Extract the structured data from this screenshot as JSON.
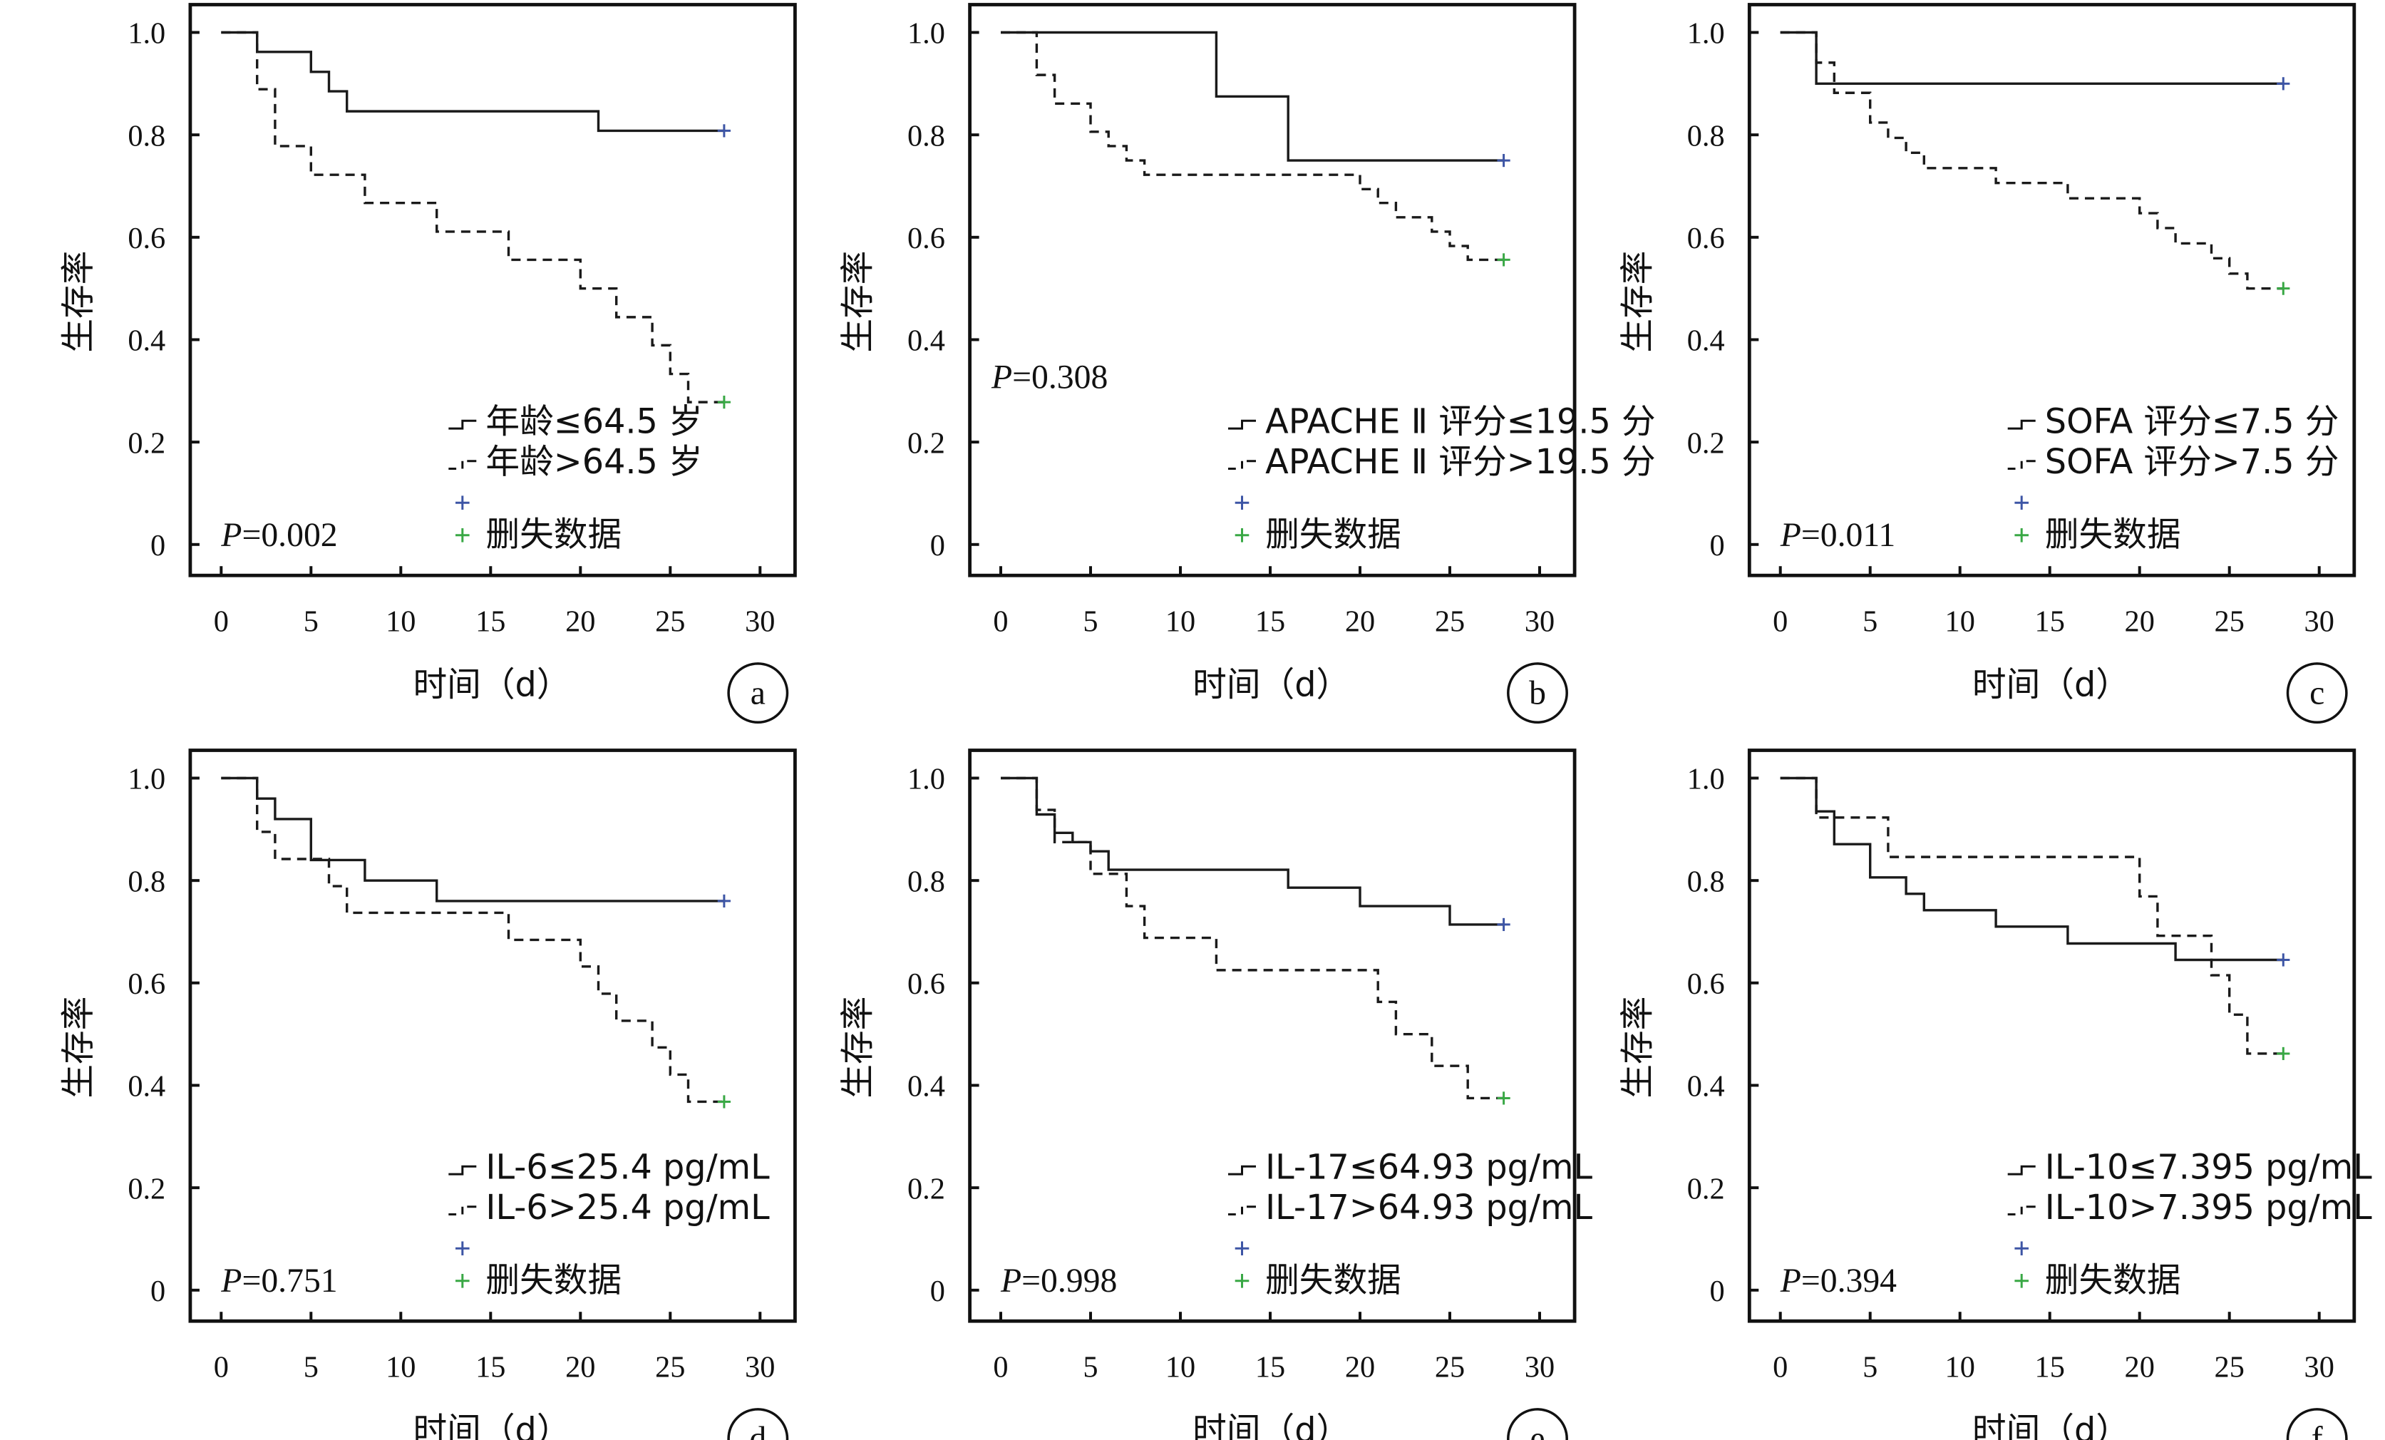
{
  "chart_data": [
    {
      "type": "line",
      "panel_label": "a",
      "xlabel": "时间（d）",
      "ylabel": "生存率",
      "xlim": [
        0,
        30
      ],
      "ylim": [
        0,
        1.0
      ],
      "xticks": [
        "0",
        "5",
        "10",
        "15",
        "20",
        "25",
        "30"
      ],
      "yticks": [
        "0",
        "0.2",
        "0.4",
        "0.6",
        "0.8",
        "1.0"
      ],
      "p_prefix": "P",
      "p_value": "=0.002",
      "legend_placement": "bottom-right",
      "legend": [
        "年龄≤64.5 岁",
        "年龄>64.5 岁",
        "",
        "删失数据"
      ],
      "series": [
        {
          "name": "年龄≤64.5 岁",
          "style": "solid",
          "color": "#1a1a1a",
          "censor_color": "#3d55a5",
          "x": [
            0,
            2,
            5,
            6,
            7,
            21,
            28
          ],
          "y": [
            1.0,
            0.962,
            0.923,
            0.885,
            0.846,
            0.808,
            0.808
          ],
          "censored": [
            [
              28,
              0.808
            ]
          ]
        },
        {
          "name": "年龄>64.5 岁",
          "style": "dashed",
          "color": "#1a1a1a",
          "censor_color": "#39a845",
          "x": [
            0,
            2,
            3,
            5,
            8,
            12,
            16,
            20,
            22,
            24,
            25,
            26,
            28
          ],
          "y": [
            1.0,
            0.889,
            0.778,
            0.722,
            0.667,
            0.611,
            0.556,
            0.5,
            0.444,
            0.389,
            0.333,
            0.278,
            0.278
          ],
          "censored": [
            [
              28,
              0.278
            ]
          ]
        }
      ]
    },
    {
      "type": "line",
      "panel_label": "b",
      "xlabel": "时间（d）",
      "ylabel": "生存率",
      "xlim": [
        0,
        30
      ],
      "ylim": [
        0,
        1.0
      ],
      "xticks": [
        "0",
        "5",
        "10",
        "15",
        "20",
        "25",
        "30"
      ],
      "yticks": [
        "0",
        "0.2",
        "0.4",
        "0.6",
        "0.8",
        "1.0"
      ],
      "p_prefix": "P",
      "p_value": "=0.308",
      "legend_placement": "bottom-right",
      "legend": [
        "APACHE Ⅱ 评分≤19.5 分",
        "APACHE Ⅱ 评分>19.5 分",
        "",
        "删失数据"
      ],
      "series": [
        {
          "name": "APACHE Ⅱ 评分≤19.5 分",
          "style": "solid",
          "color": "#1a1a1a",
          "censor_color": "#3d55a5",
          "x": [
            0,
            12,
            16,
            28
          ],
          "y": [
            1.0,
            0.875,
            0.75,
            0.75
          ],
          "censored": [
            [
              28,
              0.75
            ]
          ]
        },
        {
          "name": "APACHE Ⅱ 评分>19.5 分",
          "style": "dashed",
          "color": "#1a1a1a",
          "censor_color": "#39a845",
          "x": [
            0,
            2,
            3,
            5,
            6,
            7,
            8,
            20,
            21,
            22,
            24,
            25,
            26,
            28
          ],
          "y": [
            1.0,
            0.917,
            0.861,
            0.806,
            0.778,
            0.75,
            0.722,
            0.694,
            0.667,
            0.639,
            0.611,
            0.583,
            0.556,
            0.556
          ],
          "censored": [
            [
              28,
              0.556
            ]
          ]
        }
      ]
    },
    {
      "type": "line",
      "panel_label": "c",
      "xlabel": "时间（d）",
      "ylabel": "生存率",
      "xlim": [
        0,
        30
      ],
      "ylim": [
        0,
        1.0
      ],
      "xticks": [
        "0",
        "5",
        "10",
        "15",
        "20",
        "25",
        "30"
      ],
      "yticks": [
        "0",
        "0.2",
        "0.4",
        "0.6",
        "0.8",
        "1.0"
      ],
      "p_prefix": "P",
      "p_value": "=0.011",
      "legend_placement": "bottom-right",
      "legend": [
        "SOFA 评分≤7.5 分",
        "SOFA 评分>7.5 分",
        "",
        "删失数据"
      ],
      "series": [
        {
          "name": "SOFA 评分≤7.5 分",
          "style": "solid",
          "color": "#1a1a1a",
          "censor_color": "#3d55a5",
          "x": [
            0,
            2,
            28
          ],
          "y": [
            1.0,
            0.9,
            0.9
          ],
          "censored": [
            [
              28,
              0.9
            ]
          ]
        },
        {
          "name": "SOFA 评分>7.5 分",
          "style": "dashed",
          "color": "#1a1a1a",
          "censor_color": "#39a845",
          "x": [
            0,
            2,
            3,
            5,
            6,
            7,
            8,
            12,
            16,
            20,
            21,
            22,
            24,
            25,
            26,
            28
          ],
          "y": [
            1.0,
            0.941,
            0.882,
            0.824,
            0.794,
            0.765,
            0.735,
            0.706,
            0.676,
            0.647,
            0.618,
            0.588,
            0.559,
            0.529,
            0.5,
            0.5
          ],
          "censored": [
            [
              28,
              0.5
            ]
          ]
        }
      ]
    },
    {
      "type": "line",
      "panel_label": "d",
      "xlabel": "时间（d）",
      "ylabel": "生存率",
      "xlim": [
        0,
        30
      ],
      "ylim": [
        0,
        1.0
      ],
      "xticks": [
        "0",
        "5",
        "10",
        "15",
        "20",
        "25",
        "30"
      ],
      "yticks": [
        "0",
        "0.2",
        "0.4",
        "0.6",
        "0.8",
        "1.0"
      ],
      "p_prefix": "P",
      "p_value": "=0.751",
      "legend_placement": "bottom-right",
      "legend": [
        "IL-6≤25.4 pg/mL",
        "IL-6>25.4 pg/mL",
        "",
        "删失数据"
      ],
      "series": [
        {
          "name": "IL-6≤25.4 pg/mL",
          "style": "solid",
          "color": "#1a1a1a",
          "censor_color": "#3d55a5",
          "x": [
            0,
            2,
            3,
            5,
            8,
            12,
            28
          ],
          "y": [
            1.0,
            0.96,
            0.92,
            0.84,
            0.8,
            0.76,
            0.76
          ],
          "censored": [
            [
              28,
              0.76
            ]
          ]
        },
        {
          "name": "IL-6>25.4 pg/mL",
          "style": "dashed",
          "color": "#1a1a1a",
          "censor_color": "#39a845",
          "x": [
            0,
            2,
            3,
            6,
            7,
            16,
            20,
            21,
            22,
            24,
            25,
            26,
            28
          ],
          "y": [
            1.0,
            0.895,
            0.842,
            0.789,
            0.737,
            0.684,
            0.632,
            0.579,
            0.526,
            0.474,
            0.421,
            0.368,
            0.368
          ],
          "censored": [
            [
              28,
              0.368
            ]
          ]
        }
      ]
    },
    {
      "type": "line",
      "panel_label": "e",
      "xlabel": "时间（d）",
      "ylabel": "生存率",
      "xlim": [
        0,
        30
      ],
      "ylim": [
        0,
        1.0
      ],
      "xticks": [
        "0",
        "5",
        "10",
        "15",
        "20",
        "25",
        "30"
      ],
      "yticks": [
        "0",
        "0.2",
        "0.4",
        "0.6",
        "0.8",
        "1.0"
      ],
      "p_prefix": "P",
      "p_value": "=0.998",
      "legend_placement": "bottom-right",
      "legend": [
        "IL-17≤64.93 pg/mL",
        "IL-17>64.93 pg/mL",
        "",
        "删失数据"
      ],
      "series": [
        {
          "name": "IL-17≤64.93 pg/mL",
          "style": "solid",
          "color": "#1a1a1a",
          "censor_color": "#3d55a5",
          "x": [
            0,
            2,
            3,
            4,
            5,
            6,
            16,
            20,
            25,
            28
          ],
          "y": [
            1.0,
            0.929,
            0.893,
            0.875,
            0.857,
            0.821,
            0.786,
            0.75,
            0.714,
            0.714
          ],
          "censored": [
            [
              28,
              0.714
            ]
          ]
        },
        {
          "name": "IL-17>64.93 pg/mL",
          "style": "dashed",
          "color": "#1a1a1a",
          "censor_color": "#39a845",
          "x": [
            0,
            2,
            3,
            5,
            7,
            8,
            12,
            21,
            22,
            24,
            26,
            28
          ],
          "y": [
            1.0,
            0.938,
            0.875,
            0.813,
            0.75,
            0.688,
            0.625,
            0.563,
            0.5,
            0.438,
            0.375,
            0.375
          ],
          "censored": [
            [
              28,
              0.375
            ]
          ]
        }
      ]
    },
    {
      "type": "line",
      "panel_label": "f",
      "xlabel": "时间（d）",
      "ylabel": "生存率",
      "xlim": [
        0,
        30
      ],
      "ylim": [
        0,
        1.0
      ],
      "xticks": [
        "0",
        "5",
        "10",
        "15",
        "20",
        "25",
        "30"
      ],
      "yticks": [
        "0",
        "0.2",
        "0.4",
        "0.6",
        "0.8",
        "1.0"
      ],
      "p_prefix": "P",
      "p_value": "=0.394",
      "legend_placement": "bottom-right",
      "legend": [
        "IL-10≤7.395 pg/mL",
        "IL-10>7.395 pg/mL",
        "",
        "删失数据"
      ],
      "series": [
        {
          "name": "IL-10≤7.395 pg/mL",
          "style": "solid",
          "color": "#1a1a1a",
          "censor_color": "#3d55a5",
          "x": [
            0,
            2,
            3,
            5,
            7,
            8,
            12,
            16,
            22,
            28
          ],
          "y": [
            1.0,
            0.935,
            0.871,
            0.806,
            0.774,
            0.742,
            0.71,
            0.677,
            0.645,
            0.645
          ],
          "censored": [
            [
              28,
              0.645
            ]
          ]
        },
        {
          "name": "IL-10>7.395 pg/mL",
          "style": "dashed",
          "color": "#1a1a1a",
          "censor_color": "#39a845",
          "x": [
            0,
            2,
            6,
            20,
            21,
            24,
            25,
            26,
            28
          ],
          "y": [
            1.0,
            0.923,
            0.846,
            0.769,
            0.692,
            0.615,
            0.538,
            0.462,
            0.462
          ],
          "censored": [
            [
              28,
              0.462
            ]
          ]
        }
      ]
    }
  ]
}
